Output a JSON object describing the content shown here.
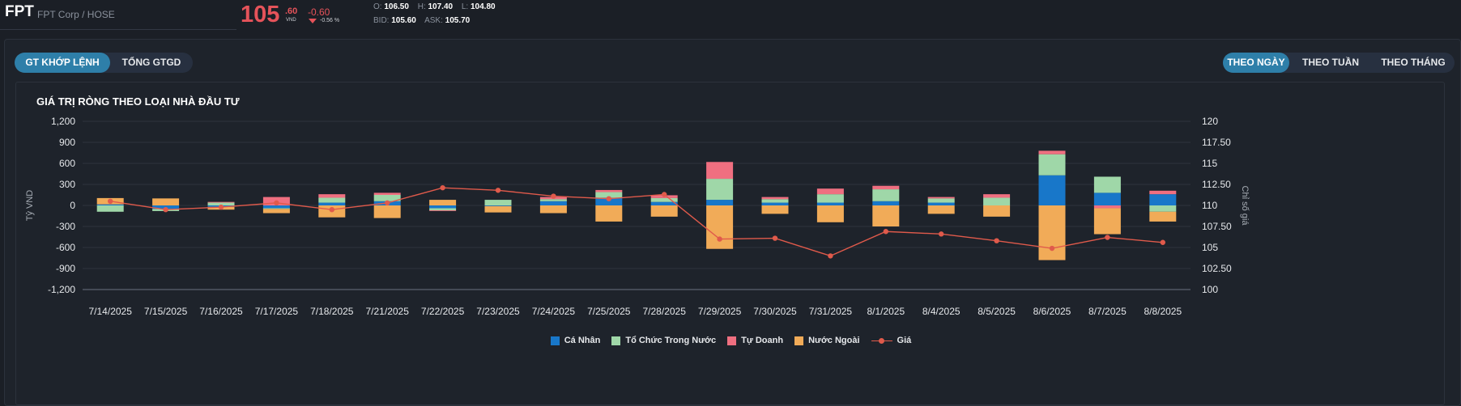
{
  "header": {
    "symbol": "FPT",
    "company": "FPT Corp / HOSE",
    "price_int": "105",
    "price_dec": ".60",
    "price_unit": "VND",
    "change": "-0.60",
    "change_pct": "-0.56 %",
    "open_label": "O:",
    "open": "106.50",
    "high_label": "H:",
    "high": "107.40",
    "low_label": "L:",
    "low": "104.80",
    "bid_label": "BID:",
    "bid": "105.60",
    "ask_label": "ASK:",
    "ask": "105.70"
  },
  "tabs_left": [
    {
      "label": "GT KHỚP LỆNH",
      "active": true
    },
    {
      "label": "TỔNG GTGD",
      "active": false
    }
  ],
  "tabs_right": [
    {
      "label": "THEO NGÀY",
      "active": true
    },
    {
      "label": "THEO TUẦN",
      "active": false
    },
    {
      "label": "THEO THÁNG",
      "active": false
    }
  ],
  "colors": {
    "ca_nhan": "#1877c9",
    "to_chuc": "#9fd7a8",
    "tu_doanh": "#ef6f80",
    "nuoc_ngoai": "#f1ab58",
    "gia": "#e05a4b"
  },
  "chart_data": {
    "type": "bar",
    "stacked": true,
    "title": "GIÁ TRỊ RÒNG THEO LOẠI NHÀ ĐẦU TƯ",
    "ylabel": "Tỷ VND",
    "y2label": "Chỉ số giá",
    "ylim": [
      -1200,
      1200
    ],
    "yticks": [
      "1,200",
      "900",
      "600",
      "300",
      "0",
      "-300",
      "-600",
      "-900",
      "-1,200"
    ],
    "y2lim": [
      100,
      120
    ],
    "y2ticks": [
      "120",
      "117.50",
      "115",
      "112.50",
      "110",
      "107.50",
      "105",
      "102.50",
      "100"
    ],
    "categories": [
      "7/14/2025",
      "7/15/2025",
      "7/16/2025",
      "7/17/2025",
      "7/18/2025",
      "7/21/2025",
      "7/22/2025",
      "7/23/2025",
      "7/24/2025",
      "7/25/2025",
      "7/28/2025",
      "7/29/2025",
      "7/30/2025",
      "7/31/2025",
      "8/1/2025",
      "8/4/2025",
      "8/5/2025",
      "8/6/2025",
      "8/7/2025",
      "8/8/2025"
    ],
    "series": [
      {
        "name": "Cá Nhân",
        "values": [
          15,
          -50,
          -20,
          -40,
          40,
          60,
          -40,
          -10,
          60,
          110,
          50,
          80,
          40,
          40,
          60,
          40,
          0,
          430,
          180,
          160
        ]
      },
      {
        "name": "Tổ Chức Trong Nước",
        "values": [
          -90,
          -30,
          40,
          -10,
          70,
          90,
          -30,
          80,
          30,
          80,
          55,
          300,
          50,
          120,
          170,
          60,
          110,
          300,
          230,
          -90
        ]
      },
      {
        "name": "Tự Doanh",
        "values": [
          0,
          0,
          10,
          120,
          50,
          30,
          -10,
          0,
          30,
          30,
          40,
          240,
          30,
          80,
          50,
          20,
          50,
          50,
          -40,
          50
        ]
      },
      {
        "name": "Nước Ngoài",
        "values": [
          90,
          100,
          -40,
          -60,
          -170,
          -180,
          80,
          -90,
          -110,
          -230,
          -160,
          -620,
          -120,
          -240,
          -300,
          -120,
          -160,
          -780,
          -370,
          -140
        ]
      },
      {
        "name": "Giá",
        "type": "line",
        "values": [
          110.5,
          109.5,
          109.8,
          110.3,
          109.5,
          110.3,
          112.1,
          111.8,
          111.1,
          110.8,
          111.3,
          106.0,
          106.1,
          104.0,
          106.9,
          106.6,
          105.8,
          104.9,
          106.2,
          105.6
        ]
      }
    ]
  }
}
